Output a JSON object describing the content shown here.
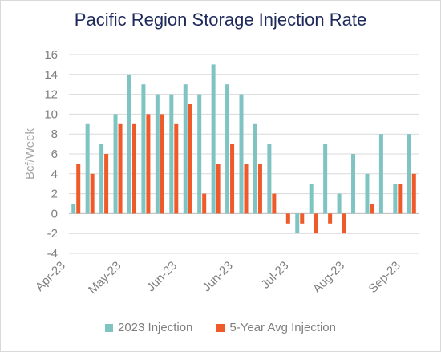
{
  "chart_data": {
    "type": "bar",
    "title": "Pacific Region Storage Injection Rate",
    "ylabel": "Bcf/Week",
    "ylim": [
      -4,
      16
    ],
    "yticks": [
      -4,
      -2,
      0,
      2,
      4,
      6,
      8,
      10,
      12,
      14,
      16
    ],
    "xtick_labels": [
      "Apr-23",
      "May-23",
      "Jun-23",
      "Jun-23",
      "Jul-23",
      "Aug-23",
      "Sep-23"
    ],
    "series": [
      {
        "name": "2023 Injection",
        "color": "#7fc4c3",
        "values": [
          1,
          9,
          7,
          10,
          14,
          13,
          12,
          12,
          13,
          12,
          15,
          13,
          12,
          9,
          7,
          null,
          -2,
          3,
          7,
          2,
          6,
          4,
          8,
          3,
          8
        ]
      },
      {
        "name": "5-Year Avg Injection",
        "color": "#ee5a2a",
        "values": [
          5,
          4,
          6,
          9,
          9,
          10,
          10,
          9,
          11,
          2,
          5,
          7,
          5,
          5,
          2,
          -1,
          -1,
          -2,
          -1,
          -2,
          null,
          1,
          null,
          3,
          4
        ]
      }
    ],
    "grid": true,
    "legend_position": "bottom"
  }
}
